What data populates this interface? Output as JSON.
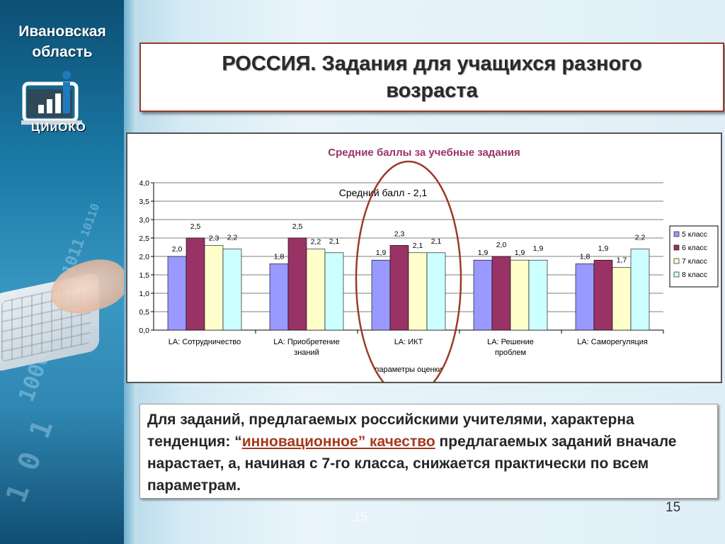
{
  "sidebar": {
    "region_line1": "Ивановская",
    "region_line2": "область",
    "logo_text": "ЦИиОКО",
    "logo_icon": "bar-chart-info-logo"
  },
  "slide": {
    "title_line1": "РОССИЯ. Задания для учащихся разного",
    "title_line2": "возраста",
    "page_number": "15",
    "page_number_ghost": "15"
  },
  "conclusion": {
    "part1": "Для заданий, предлагаемых российскими учителями, характерна тенденция: “",
    "highlight": "инновационное” качество",
    "part2": " предлагаемых заданий вначале нарастает, а, начиная с 7-го класса, снижается практически по всем параметрам."
  },
  "colors": {
    "accent_border": "#9b3a28",
    "highlight_text": "#a33a1e",
    "circle": "#9b3a28"
  },
  "chart_data": {
    "type": "bar",
    "title": "Средние баллы за учебные задания",
    "annotation": "Средний балл - 2,1",
    "xlabel": "параметры оценки",
    "ylabel": "",
    "ylim": [
      0,
      4
    ],
    "yticks": [
      "0,0",
      "0,5",
      "1,0",
      "1,5",
      "2,0",
      "2,5",
      "3,0",
      "3,5",
      "4,0"
    ],
    "grid": true,
    "legend_position": "right",
    "highlighted_category": "LA: ИКТ",
    "categories": [
      [
        "LA: Сотрудничество"
      ],
      [
        "LA: Приобретение",
        "знаний"
      ],
      [
        "LA: ИКТ"
      ],
      [
        "LA: Решение",
        "проблем"
      ],
      [
        "LA: Саморегуляция"
      ]
    ],
    "series": [
      {
        "name": "5 класс",
        "color": "#9999ff",
        "values": [
          2.0,
          1.8,
          1.9,
          1.9,
          1.8
        ],
        "labels": [
          "2,0",
          "1,8",
          "1,9",
          "1,9",
          "1,8"
        ]
      },
      {
        "name": "6 класс",
        "color": "#993366",
        "values": [
          2.5,
          2.5,
          2.3,
          2.0,
          1.9
        ],
        "labels": [
          "2,5",
          "2,5",
          "2,3",
          "2,0",
          "1,9"
        ]
      },
      {
        "name": "7 класс",
        "color": "#ffffcc",
        "values": [
          2.3,
          2.2,
          2.1,
          1.9,
          1.7
        ],
        "labels": [
          "2,3",
          "2,2",
          "2,1",
          "1,9",
          "1,7"
        ]
      },
      {
        "name": "8 класс",
        "color": "#ccffff",
        "values": [
          2.2,
          2.1,
          2.1,
          1.9,
          2.2
        ],
        "labels": [
          "2,2",
          "2,1",
          "2,1",
          "1,9",
          "2,2"
        ]
      }
    ]
  }
}
